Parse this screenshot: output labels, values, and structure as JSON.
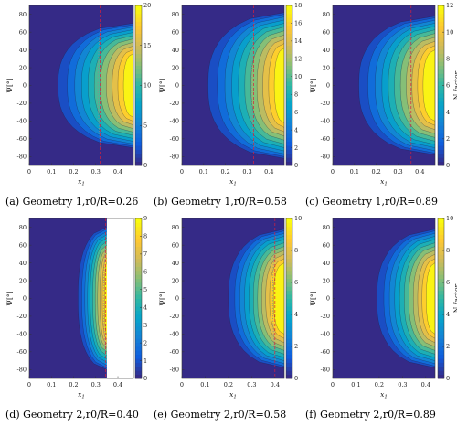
{
  "chart_data": [
    {
      "type": "contour",
      "caption": "(a) Geometry 1,r0/R=0.26",
      "xlabel": "x1",
      "ylabel": "Ψ[°]",
      "colorbar_label": "",
      "xlim": [
        0,
        0.47
      ],
      "ylim": [
        -90,
        90
      ],
      "x_ticks": [
        0,
        0.1,
        0.2,
        0.3,
        0.4
      ],
      "y_ticks": [
        80,
        60,
        40,
        20,
        0,
        -20,
        -40,
        -60,
        -80
      ],
      "clim": [
        0,
        20
      ],
      "colorbar_ticks": [
        0,
        5,
        10,
        15,
        20
      ],
      "outer_boundary_x_at_psi0": 0.13,
      "outer_boundary_psi_extent": 70,
      "peak_x": 0.45,
      "dashed_line_x": 0.32,
      "dotted_curve_x_at_psi0": 0.31
    },
    {
      "type": "contour",
      "caption": "(b) Geometry 1,r0/R=0.58",
      "xlabel": "x1",
      "ylabel": "Ψ[°]",
      "colorbar_label": "",
      "xlim": [
        0,
        0.47
      ],
      "ylim": [
        -90,
        90
      ],
      "x_ticks": [
        0,
        0.1,
        0.2,
        0.3,
        0.4
      ],
      "y_ticks": [
        80,
        60,
        40,
        20,
        0,
        -20,
        -40,
        -60,
        -80
      ],
      "clim": [
        0,
        18
      ],
      "colorbar_ticks": [
        0,
        2,
        4,
        6,
        8,
        10,
        12,
        14,
        16,
        18
      ],
      "outer_boundary_x_at_psi0": 0.12,
      "outer_boundary_psi_extent": 82,
      "peak_x": 0.45,
      "dashed_line_x": 0.33,
      "dotted_curve_x_at_psi0": 0.32
    },
    {
      "type": "contour",
      "caption": "(c) Geometry 1,r0/R=0.89",
      "xlabel": "x1",
      "ylabel": "Ψ[°]",
      "colorbar_label": "N factor",
      "xlim": [
        0,
        0.47
      ],
      "ylim": [
        -90,
        90
      ],
      "x_ticks": [
        0,
        0.1,
        0.2,
        0.3,
        0.4
      ],
      "y_ticks": [
        80,
        60,
        40,
        20,
        0,
        -20,
        -40,
        -60,
        -80
      ],
      "clim": [
        0,
        12
      ],
      "colorbar_ticks": [
        0,
        2,
        4,
        6,
        8,
        10,
        12
      ],
      "outer_boundary_x_at_psi0": 0.12,
      "outer_boundary_psi_extent": 78,
      "peak_x": 0.44,
      "dashed_line_x": 0.36,
      "dotted_curve_x_at_psi0": 0.35
    },
    {
      "type": "contour",
      "caption": "(d) Geometry 2,r0/R=0.40",
      "xlabel": "x1",
      "ylabel": "Ψ[°]",
      "colorbar_label": "",
      "xlim": [
        0,
        0.47
      ],
      "ylim": [
        -90,
        90
      ],
      "x_ticks": [
        0,
        0.1,
        0.2,
        0.3,
        0.4
      ],
      "y_ticks": [
        80,
        60,
        40,
        20,
        0,
        -20,
        -40,
        -60,
        -80
      ],
      "clim": [
        0,
        9
      ],
      "colorbar_ticks": [
        0,
        1,
        2,
        3,
        4,
        5,
        6,
        7,
        8,
        9
      ],
      "outer_boundary_x_at_psi0": 0.22,
      "outer_boundary_psi_extent": 80,
      "peak_x": 0.35,
      "data_end_x": 0.35,
      "dashed_line_x": 0.345,
      "dotted_curve_x_at_psi0": 0.335
    },
    {
      "type": "contour",
      "caption": "(e) Geometry 2,r0/R=0.58",
      "xlabel": "x1",
      "ylabel": "Ψ[°]",
      "colorbar_label": "",
      "xlim": [
        0,
        0.44
      ],
      "ylim": [
        -90,
        90
      ],
      "x_ticks": [
        0,
        0.1,
        0.2,
        0.3,
        0.4
      ],
      "y_ticks": [
        80,
        60,
        40,
        20,
        0,
        -20,
        -40,
        -60,
        -80
      ],
      "clim": [
        0,
        10
      ],
      "colorbar_ticks": [
        0,
        2,
        4,
        6,
        8,
        10
      ],
      "outer_boundary_x_at_psi0": 0.2,
      "outer_boundary_psi_extent": 78,
      "peak_x": 0.41,
      "dashed_line_x": 0.4,
      "dotted_curve_x_at_psi0": 0.39
    },
    {
      "type": "contour",
      "caption": "(f) Geometry 2,r0/R=0.89",
      "xlabel": "x1",
      "ylabel": "Ψ[°]",
      "colorbar_label": "N factor",
      "xlim": [
        0,
        0.44
      ],
      "ylim": [
        -90,
        90
      ],
      "x_ticks": [
        0,
        0.1,
        0.2,
        0.3,
        0.4
      ],
      "y_ticks": [
        80,
        60,
        40,
        20,
        0,
        -20,
        -40,
        -60,
        -80
      ],
      "clim": [
        0,
        10
      ],
      "colorbar_ticks": [
        0,
        2,
        4,
        6,
        8,
        10
      ],
      "outer_boundary_x_at_psi0": 0.19,
      "outer_boundary_psi_extent": 78,
      "peak_x": 0.42,
      "dashed_line_x": null,
      "dotted_curve_x_at_psi0": null
    }
  ],
  "colors": {
    "background": "#3e26a8",
    "contour_line": "#1c1c3a",
    "dashed_line": "#d8203c",
    "dotted_line": "#8c8c8c"
  }
}
